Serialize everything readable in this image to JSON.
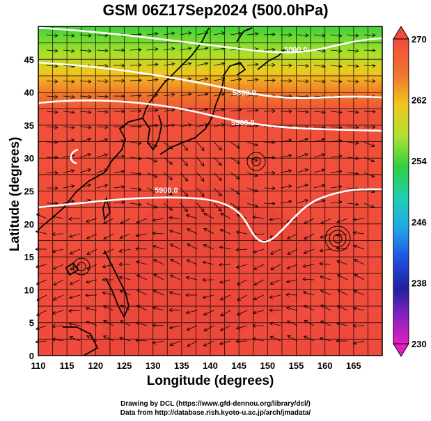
{
  "title": "GSM 06Z17Sep2024 (500.0hPa)",
  "xaxis": {
    "label": "Longitude (degrees)",
    "ticks": [
      "110",
      "115",
      "120",
      "125",
      "130",
      "135",
      "140",
      "145",
      "150",
      "155",
      "160",
      "165"
    ],
    "range": [
      110,
      170
    ]
  },
  "yaxis": {
    "label": "Latitude  (degrees)",
    "ticks": [
      "0",
      "5",
      "10",
      "15",
      "20",
      "25",
      "30",
      "35",
      "40",
      "45"
    ],
    "range": [
      0,
      50
    ]
  },
  "colorbar": {
    "ticks": [
      "270",
      "262",
      "254",
      "246",
      "238",
      "230"
    ],
    "range": [
      230,
      270
    ]
  },
  "contours": [
    {
      "label": "5800.0"
    },
    {
      "label": "5800.0"
    },
    {
      "label": "5900.0"
    },
    {
      "label": "5900.0"
    }
  ],
  "credits": {
    "line1": "Drawing by DCL (https://www.gfd-dennou.org/library/dcl/)",
    "line2": "Data from http://database.rish.kyoto-u.ac.jp/arch/jmadata/"
  }
}
